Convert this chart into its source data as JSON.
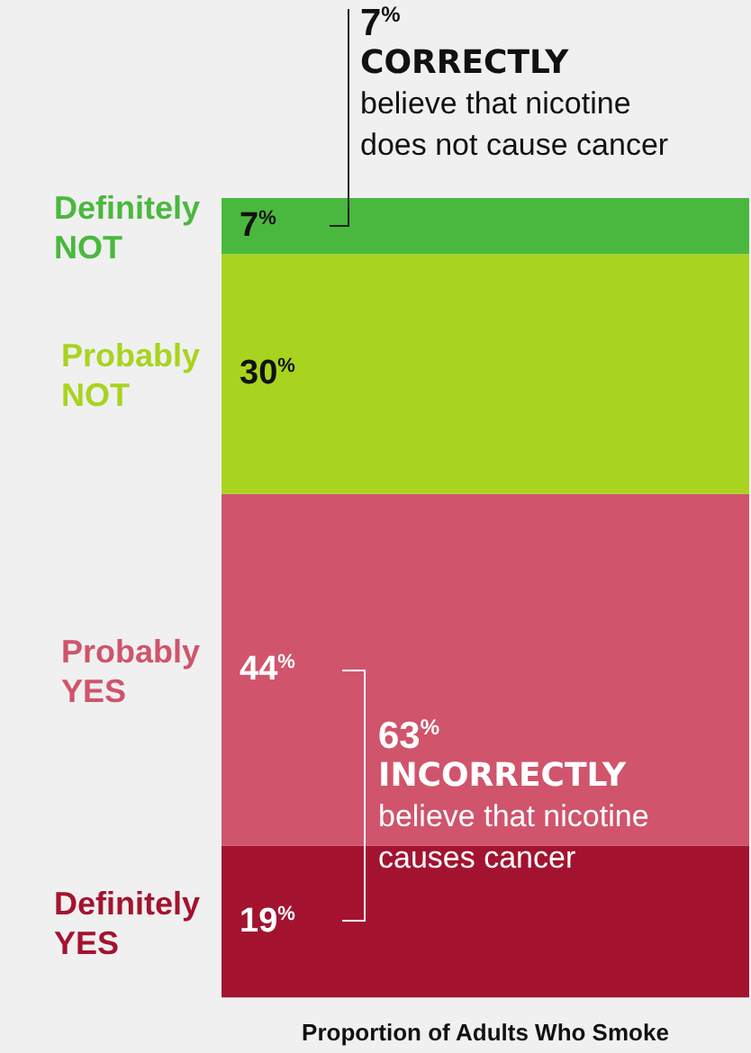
{
  "chart_data": {
    "type": "bar",
    "stacked": true,
    "xlabel": "Proportion of Adults Who Smoke",
    "categories": [
      null
    ],
    "series": [
      {
        "name": "Definitely YES",
        "color": "#a3132f",
        "values": [
          19
        ],
        "value_labels": [
          "19%"
        ]
      },
      {
        "name": "Probably YES",
        "color": "#d0546c",
        "values": [
          44
        ],
        "value_labels": [
          "44%"
        ]
      },
      {
        "name": "Probably NOT",
        "color": "#a8d41f",
        "values": [
          30
        ],
        "value_labels": [
          "30%"
        ]
      },
      {
        "name": "Definitely NOT",
        "color": "#4ab83e",
        "values": [
          7
        ],
        "value_labels": [
          "7%"
        ]
      }
    ],
    "annotations": [
      "7%\nCORRECTLY\nbelieve that nicotine\ndoes not cause cancer",
      "63%\nINCORRECTLY\nbelieve that nicotine\ncauses cancer"
    ],
    "legend": false
  }
}
